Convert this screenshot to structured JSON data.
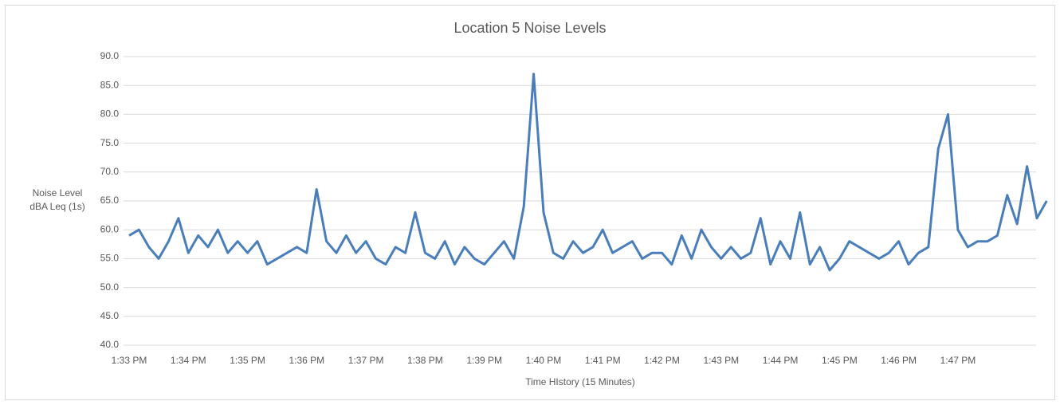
{
  "chart_data": {
    "type": "line",
    "title": "Location 5 Noise Levels",
    "x_label": "Time HIstory (15 Minutes)",
    "y_label": [
      "Noise Level",
      "dBA Leq (1s)"
    ],
    "categories": [
      "1:33 PM",
      null,
      null,
      null,
      null,
      null,
      "1:34 PM",
      null,
      null,
      null,
      null,
      null,
      "1:35 PM",
      null,
      null,
      null,
      null,
      null,
      "1:36 PM",
      null,
      null,
      null,
      null,
      null,
      "1:37 PM",
      null,
      null,
      null,
      null,
      null,
      "1:38 PM",
      null,
      null,
      null,
      null,
      null,
      "1:39 PM",
      null,
      null,
      null,
      null,
      null,
      "1:40 PM",
      null,
      null,
      null,
      null,
      null,
      "1:41 PM",
      null,
      null,
      null,
      null,
      null,
      "1:42 PM",
      null,
      null,
      null,
      null,
      null,
      "1:43 PM",
      null,
      null,
      null,
      null,
      null,
      "1:44 PM",
      null,
      null,
      null,
      null,
      null,
      "1:45 PM",
      null,
      null,
      null,
      null,
      null,
      "1:46 PM",
      null,
      null,
      null,
      null,
      null,
      "1:47 PM",
      null,
      null,
      null,
      null,
      null,
      null,
      null,
      null,
      null
    ],
    "series": [
      {
        "name": "Noise Level",
        "color": "#4a7ebb",
        "values": [
          59,
          60,
          57,
          55,
          58,
          62,
          56,
          59,
          57,
          60,
          56,
          58,
          56,
          58,
          54,
          55,
          56,
          57,
          56,
          67,
          58,
          56,
          59,
          56,
          58,
          55,
          54,
          57,
          56,
          63,
          56,
          55,
          58,
          54,
          57,
          55,
          54,
          56,
          58,
          55,
          64,
          87,
          63,
          56,
          55,
          58,
          56,
          57,
          60,
          56,
          57,
          58,
          55,
          56,
          56,
          54,
          59,
          55,
          60,
          57,
          55,
          57,
          55,
          56,
          62,
          54,
          58,
          55,
          63,
          54,
          57,
          53,
          55,
          58,
          57,
          56,
          55,
          56,
          58,
          54,
          56,
          57,
          74,
          80,
          60,
          57,
          58,
          58,
          59,
          66,
          61,
          71,
          62,
          65
        ]
      }
    ],
    "ylim": [
      40,
      90
    ],
    "yticks": [
      {
        "value": 40,
        "label": "40.0"
      },
      {
        "value": 45,
        "label": "45.0"
      },
      {
        "value": 50,
        "label": "50.0"
      },
      {
        "value": 55,
        "label": "55.0"
      },
      {
        "value": 60,
        "label": "60.0"
      },
      {
        "value": 65,
        "label": "65.0"
      },
      {
        "value": 70,
        "label": "70.0"
      },
      {
        "value": 75,
        "label": "75.0"
      },
      {
        "value": 80,
        "label": "80.0"
      },
      {
        "value": 85,
        "label": "85.0"
      },
      {
        "value": 90,
        "label": "90.0"
      }
    ],
    "grid": true
  }
}
